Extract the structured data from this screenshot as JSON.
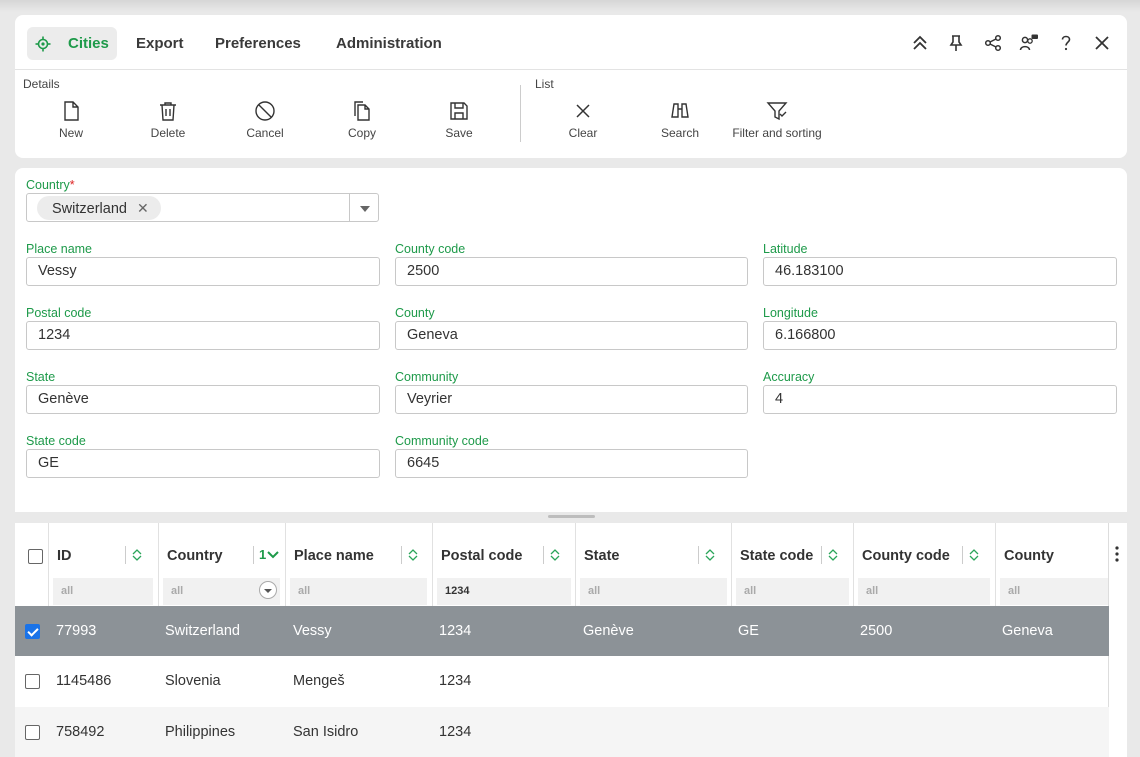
{
  "tabs": {
    "cities": "Cities",
    "export": "Export",
    "preferences": "Preferences",
    "administration": "Administration"
  },
  "toolbar": {
    "details_label": "Details",
    "list_label": "List",
    "new": "New",
    "delete": "Delete",
    "cancel": "Cancel",
    "copy": "Copy",
    "save": "Save",
    "clear": "Clear",
    "search": "Search",
    "filter_sorting": "Filter and sorting"
  },
  "top_icons": [
    "collapse-up-icon",
    "pin-icon",
    "share-icon",
    "users-chat-icon",
    "help-icon",
    "close-icon"
  ],
  "form": {
    "country_label": "Country",
    "required_mark": "*",
    "country_value": "Switzerland",
    "chip_remove": "✕",
    "place_name_label": "Place name",
    "place_name": "Vessy",
    "postal_code_label": "Postal code",
    "postal_code": "1234",
    "state_label": "State",
    "state": "Genève",
    "state_code_label": "State code",
    "state_code": "GE",
    "county_code_label": "County code",
    "county_code": "2500",
    "county_label": "County",
    "county": "Geneva",
    "community_label": "Community",
    "community": "Veyrier",
    "community_code_label": "Community code",
    "community_code": "6645",
    "latitude_label": "Latitude",
    "latitude": "46.183100",
    "longitude_label": "Longitude",
    "longitude": "6.166800",
    "accuracy_label": "Accuracy",
    "accuracy": "4"
  },
  "grid": {
    "columns": {
      "id": "ID",
      "country": "Country",
      "place_name": "Place name",
      "postal_code": "Postal code",
      "state": "State",
      "state_code": "State code",
      "county_code": "County code",
      "county": "County"
    },
    "sort_indicator": "1",
    "filters": {
      "id": "all",
      "country": "all",
      "place_name": "all",
      "postal_code": "1234",
      "state": "all",
      "state_code": "all",
      "county_code": "all",
      "county": "all"
    },
    "rows": [
      {
        "id": "77993",
        "country": "Switzerland",
        "place_name": "Vessy",
        "postal_code": "1234",
        "state": "Genève",
        "state_code": "GE",
        "county_code": "2500",
        "county": "Geneva",
        "selected": true
      },
      {
        "id": "1145486",
        "country": "Slovenia",
        "place_name": "Mengeš",
        "postal_code": "1234",
        "state": "",
        "state_code": "",
        "county_code": "",
        "county": "",
        "selected": false
      },
      {
        "id": "758492",
        "country": "Philippines",
        "place_name": "San Isidro",
        "postal_code": "1234",
        "state": "",
        "state_code": "",
        "county_code": "",
        "county": "",
        "selected": false
      }
    ]
  },
  "colors": {
    "accent": "#1e9a4a",
    "selected_row": "#8c9297",
    "checkbox": "#1a73e8"
  }
}
